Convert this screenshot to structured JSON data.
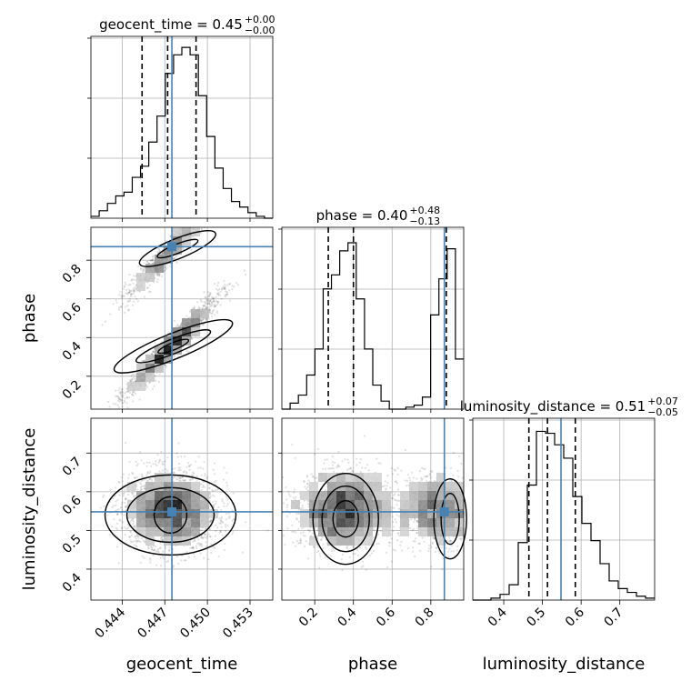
{
  "chart_data": {
    "type": "corner",
    "parameters": [
      {
        "name": "geocent_time",
        "range": [
          0.4418,
          0.4546
        ],
        "ticks": [
          0.444,
          0.447,
          0.45,
          0.453
        ],
        "tick_labels": [
          "0.444",
          "0.447",
          "0.450",
          "0.453"
        ],
        "truth": 0.4475
      },
      {
        "name": "phase",
        "range": [
          0.03,
          0.97
        ],
        "ticks": [
          0.2,
          0.4,
          0.6,
          0.8
        ],
        "tick_labels": [
          "0.2",
          "0.4",
          "0.6",
          "0.8"
        ],
        "truth": 0.87
      },
      {
        "name": "luminosity_distance",
        "range": [
          0.32,
          0.79
        ],
        "ticks": [
          0.4,
          0.5,
          0.6,
          0.7
        ],
        "tick_labels": [
          "0.4",
          "0.5",
          "0.6",
          "0.7"
        ],
        "truth": 0.548
      }
    ],
    "titles": [
      {
        "main": "geocent_time = 0.45",
        "sup": "+0.00",
        "sub": "−0.00"
      },
      {
        "main": "phase = 0.40",
        "sup": "+0.48",
        "sub": "−0.13"
      },
      {
        "main": "luminosity_distance = 0.51",
        "sup": "+0.07",
        "sub": "−0.05"
      }
    ],
    "quantiles": [
      [
        0.4454,
        0.4472,
        0.4492
      ],
      [
        0.27,
        0.4,
        0.88
      ],
      [
        0.465,
        0.513,
        0.585
      ]
    ],
    "histograms": [
      {
        "edges_range": [
          0.4418,
          0.4546
        ],
        "counts": [
          1,
          4,
          8,
          12,
          14,
          22,
          28,
          41,
          55,
          78,
          88,
          92,
          88,
          66,
          44,
          27,
          16,
          9,
          6,
          3,
          1,
          0
        ]
      },
      {
        "edges_range": [
          0.03,
          0.97
        ],
        "counts": [
          0,
          3,
          7,
          17,
          30,
          60,
          67,
          79,
          83,
          55,
          30,
          12,
          4,
          0,
          0,
          1,
          2,
          6,
          47,
          65,
          80,
          25
        ]
      },
      {
        "edges_range": [
          0.32,
          0.79
        ],
        "counts": [
          0,
          0,
          1,
          3,
          8,
          30,
          60,
          88,
          87,
          81,
          74,
          54,
          40,
          31,
          19,
          10,
          6,
          4,
          2,
          1
        ]
      }
    ],
    "grid": true,
    "contour_levels": 3,
    "xlabels": [
      "geocent_time",
      "phase",
      "luminosity_distance"
    ],
    "ylabels": [
      "",
      "phase",
      "luminosity_distance"
    ]
  }
}
